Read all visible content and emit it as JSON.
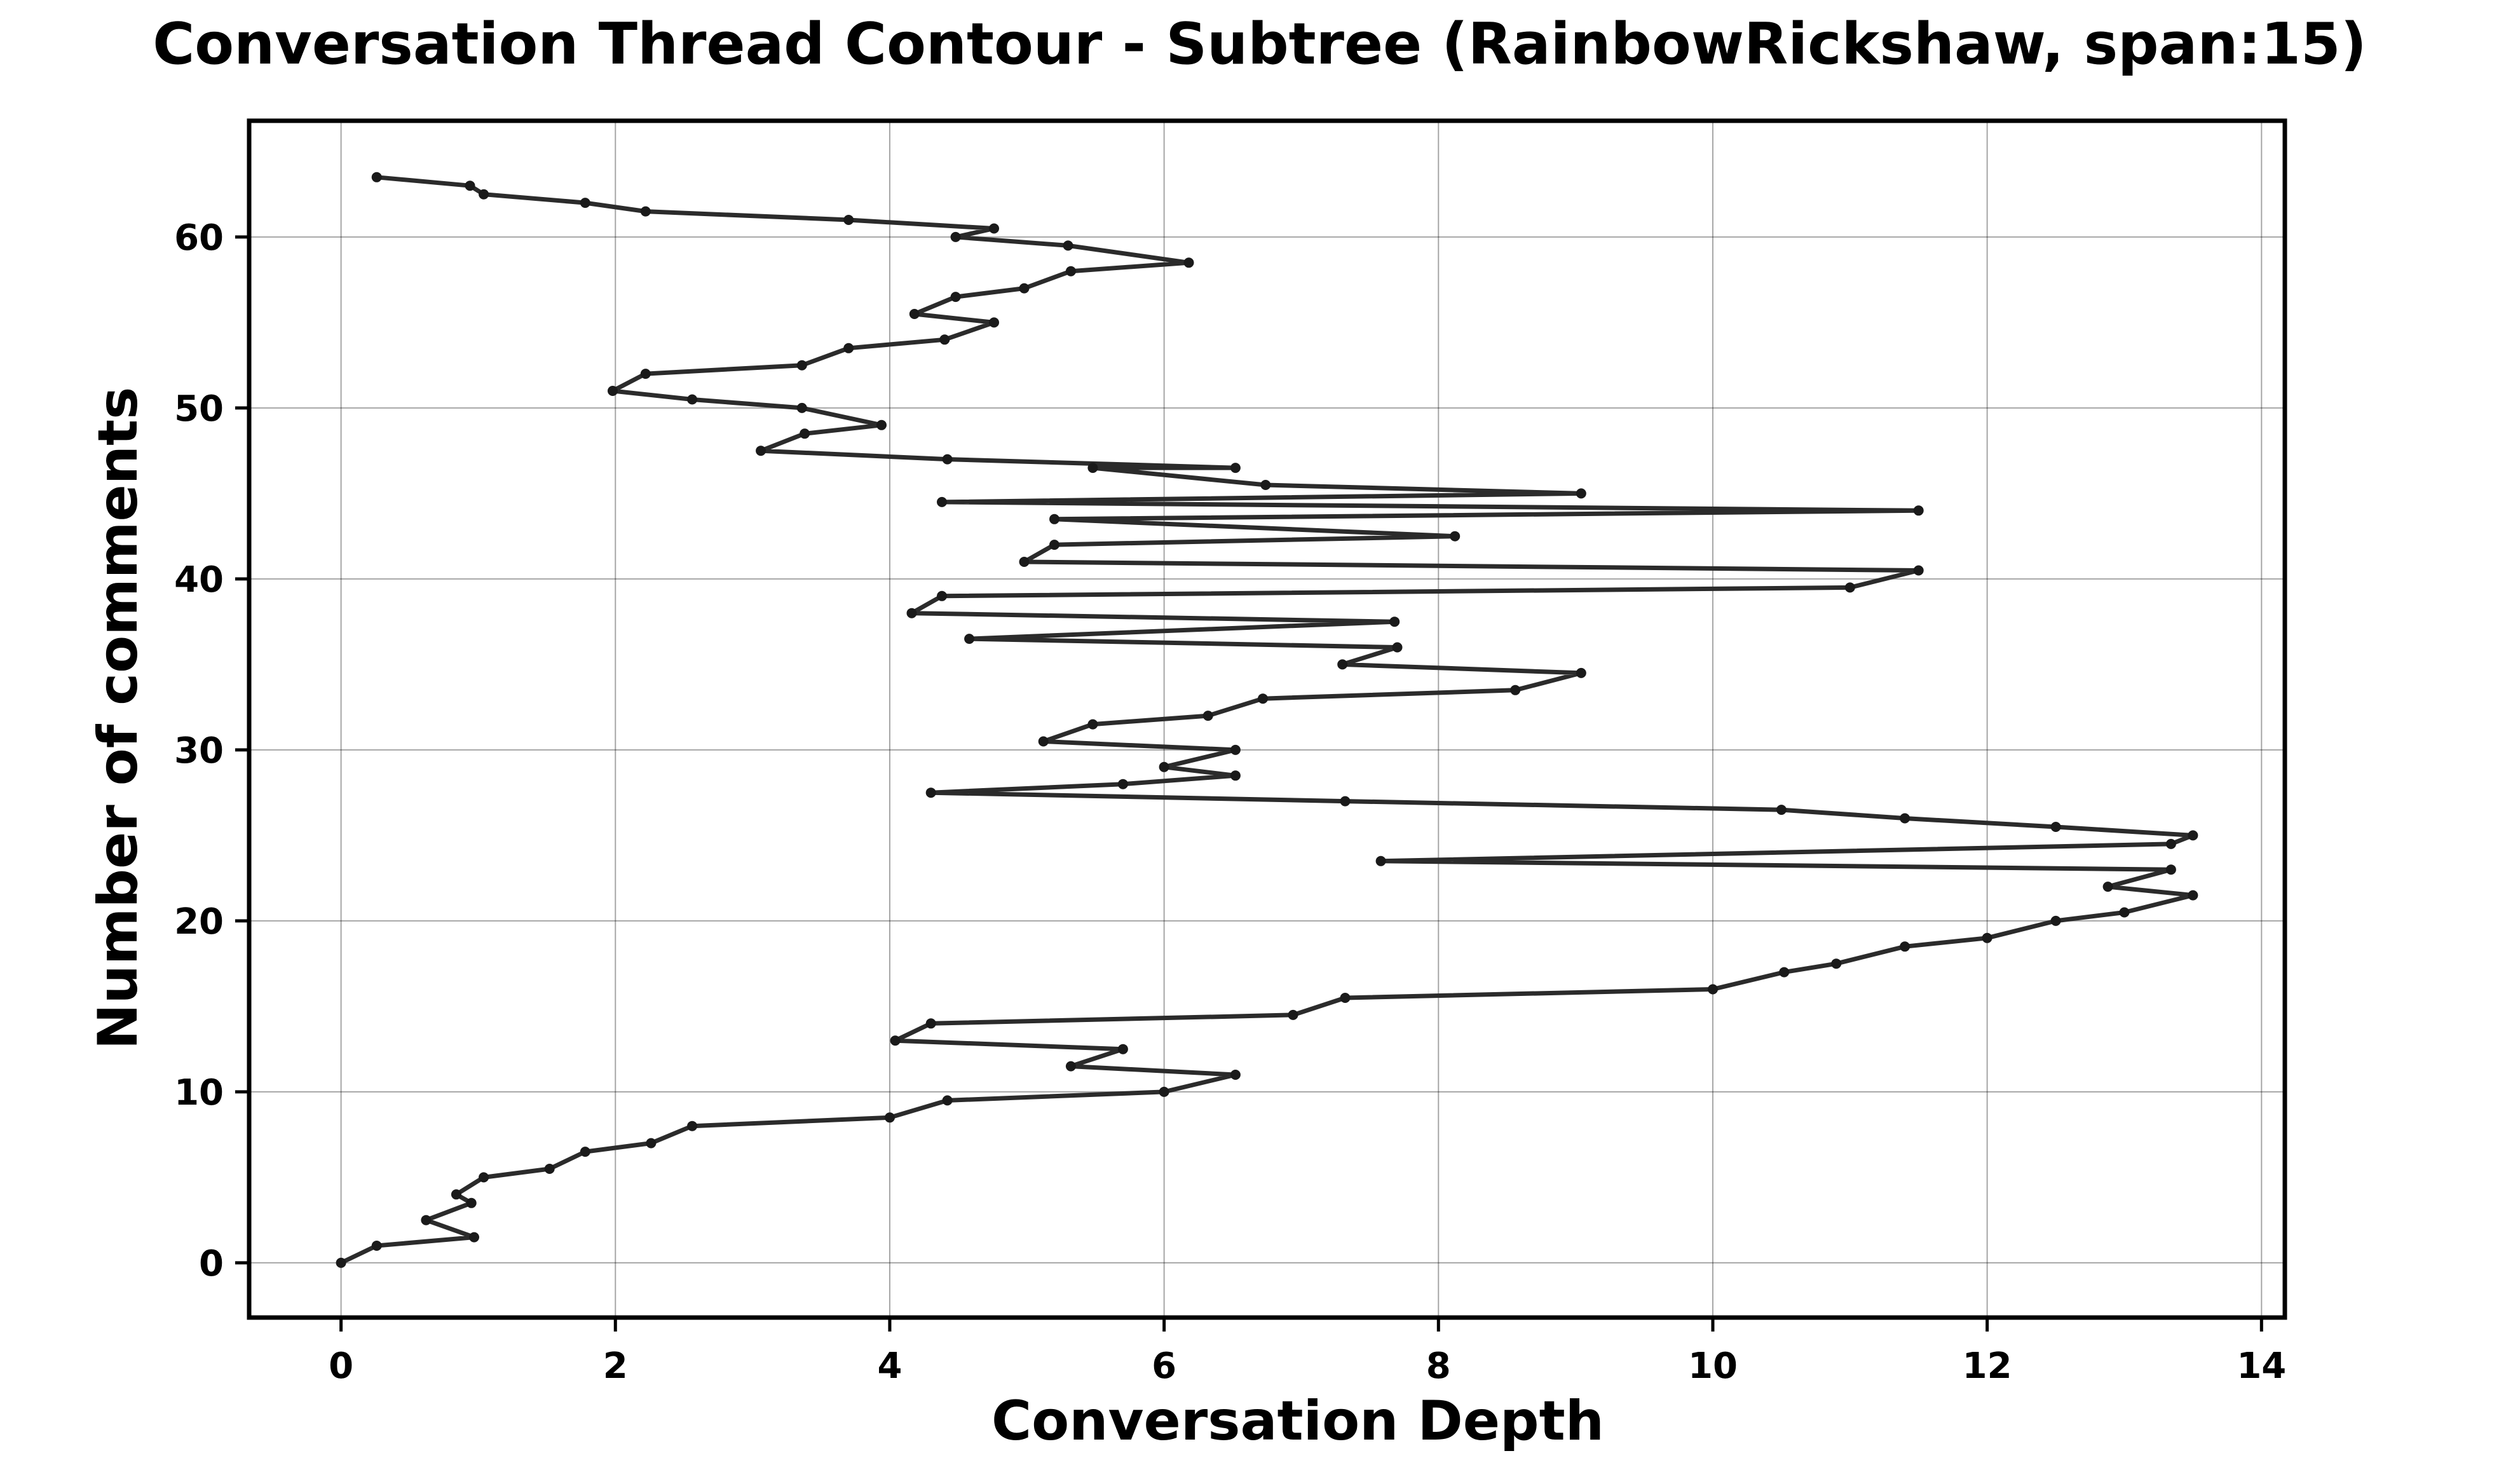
{
  "chart_data": {
    "type": "line",
    "title": "Conversation Thread Contour  - Subtree (RainbowRickshaw, span:15)",
    "xlabel": "Conversation Depth",
    "ylabel": "Number of comments",
    "xlim": [
      -0.67,
      14.17
    ],
    "ylim": [
      -3.2,
      66.8
    ],
    "xticks": [
      0,
      2,
      4,
      6,
      8,
      10,
      12,
      14
    ],
    "yticks": [
      0,
      10,
      20,
      30,
      40,
      50,
      60
    ],
    "grid": true,
    "series": [
      {
        "color": "#2b2b2b",
        "points": [
          [
            0,
            0
          ],
          [
            0.26,
            1
          ],
          [
            0.97,
            1.5
          ],
          [
            0.62,
            2.5
          ],
          [
            0.95,
            3.5
          ],
          [
            0.84,
            4
          ],
          [
            1.04,
            5
          ],
          [
            1.52,
            5.5
          ],
          [
            1.78,
            6.5
          ],
          [
            2.26,
            7
          ],
          [
            2.56,
            8
          ],
          [
            4.0,
            8.5
          ],
          [
            4.42,
            9.5
          ],
          [
            6.0,
            10
          ],
          [
            6.52,
            11
          ],
          [
            5.32,
            11.5
          ],
          [
            5.7,
            12.5
          ],
          [
            4.04,
            13
          ],
          [
            4.3,
            14
          ],
          [
            6.94,
            14.5
          ],
          [
            7.32,
            15.5
          ],
          [
            10.0,
            16
          ],
          [
            10.52,
            17
          ],
          [
            10.9,
            17.5
          ],
          [
            11.4,
            18.5
          ],
          [
            12.0,
            19
          ],
          [
            12.5,
            20
          ],
          [
            13.0,
            20.5
          ],
          [
            13.5,
            21.5
          ],
          [
            12.88,
            22
          ],
          [
            13.34,
            23
          ],
          [
            7.58,
            23.5
          ],
          [
            13.34,
            24.5
          ],
          [
            13.5,
            25
          ],
          [
            12.5,
            25.5
          ],
          [
            11.4,
            26
          ],
          [
            10.5,
            26.5
          ],
          [
            7.32,
            27
          ],
          [
            4.3,
            27.5
          ],
          [
            5.7,
            28
          ],
          [
            6.52,
            28.5
          ],
          [
            6.0,
            29
          ],
          [
            6.52,
            30
          ],
          [
            5.12,
            30.5
          ],
          [
            5.48,
            31.5
          ],
          [
            6.32,
            32
          ],
          [
            6.72,
            33
          ],
          [
            8.56,
            33.5
          ],
          [
            9.04,
            34.5
          ],
          [
            7.3,
            35
          ],
          [
            7.7,
            36
          ],
          [
            4.58,
            36.5
          ],
          [
            7.68,
            37.5
          ],
          [
            4.16,
            38
          ],
          [
            4.38,
            39
          ],
          [
            11.0,
            39.5
          ],
          [
            11.5,
            40.5
          ],
          [
            4.98,
            41
          ],
          [
            5.2,
            42
          ],
          [
            8.12,
            42.5
          ],
          [
            5.2,
            43.5
          ],
          [
            11.5,
            44
          ],
          [
            4.38,
            44.5
          ],
          [
            9.04,
            45
          ],
          [
            6.74,
            45.5
          ],
          [
            5.48,
            46.5
          ],
          [
            6.52,
            46.5
          ],
          [
            4.42,
            47
          ],
          [
            3.06,
            47.5
          ],
          [
            3.38,
            48.5
          ],
          [
            3.94,
            49
          ],
          [
            3.36,
            50
          ],
          [
            2.56,
            50.5
          ],
          [
            1.98,
            51
          ],
          [
            2.22,
            52
          ],
          [
            3.36,
            52.5
          ],
          [
            3.7,
            53.5
          ],
          [
            4.4,
            54
          ],
          [
            4.76,
            55
          ],
          [
            4.18,
            55.5
          ],
          [
            4.48,
            56.5
          ],
          [
            4.98,
            57
          ],
          [
            5.32,
            58
          ],
          [
            6.18,
            58.5
          ],
          [
            5.3,
            59.5
          ],
          [
            4.48,
            60
          ],
          [
            4.76,
            60.5
          ],
          [
            3.7,
            61
          ],
          [
            2.22,
            61.5
          ],
          [
            1.78,
            62
          ],
          [
            1.04,
            62.5
          ],
          [
            0.94,
            63
          ],
          [
            0.26,
            63.5
          ]
        ]
      }
    ]
  }
}
